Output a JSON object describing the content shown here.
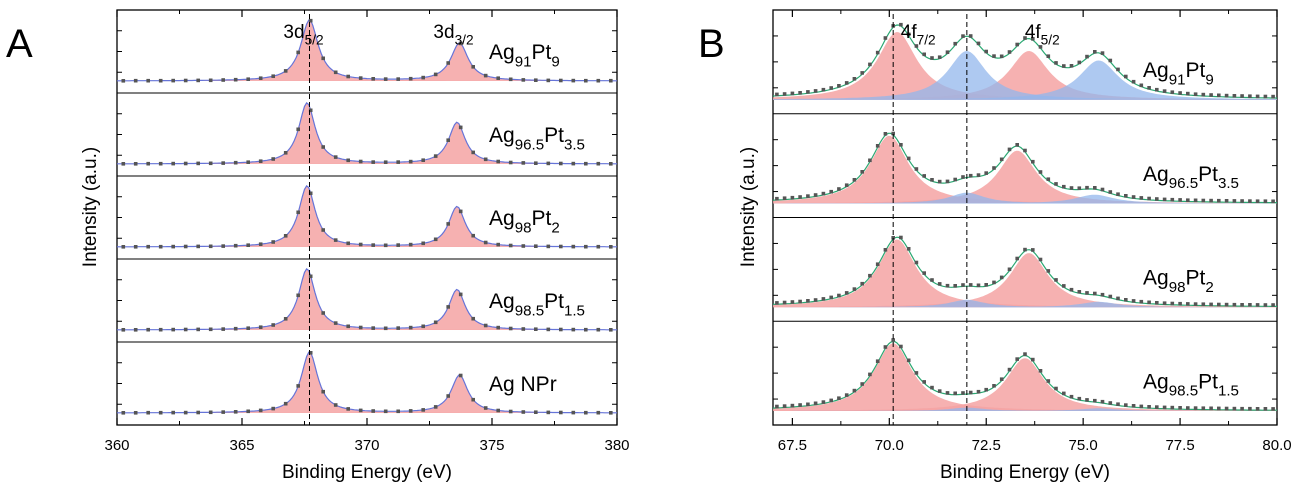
{
  "colors": {
    "peak_fill": "#f4a3a3",
    "peak_fill_opacity": 0.85,
    "secondary_fill": "#93b7ec",
    "secondary_fill_opacity": 0.75,
    "fit_line_A": "#6674d8",
    "fit_line_B": "#2aa872",
    "data_marker": "#555555",
    "axis": "#000000",
    "guide": "#000000"
  },
  "chart_data": [
    {
      "panel_label": "A",
      "type": "line",
      "title": "",
      "xlabel": "Binding Energy (eV)",
      "ylabel": "Intensity (a.u.)",
      "xlim": [
        360,
        380
      ],
      "xticks": [
        "360",
        "365",
        "370",
        "375",
        "380"
      ],
      "x_tick_values": [
        360,
        365,
        370,
        375,
        380
      ],
      "reference_lines": [
        367.7
      ],
      "peak_labels": [
        {
          "main": "3d",
          "sub": "5/2",
          "x": 367.7
        },
        {
          "main": "3d",
          "sub": "3/2",
          "x": 373.7
        }
      ],
      "stacked": true,
      "series": [
        {
          "name_parts": [
            {
              "t": "Ag"
            },
            {
              "t": "91",
              "sub": true
            },
            {
              "t": "Pt"
            },
            {
              "t": "9",
              "sub": true
            }
          ],
          "peaks": [
            {
              "center": 367.7,
              "height": 1.0,
              "width": 0.42
            },
            {
              "center": 373.7,
              "height": 0.62,
              "width": 0.42
            }
          ]
        },
        {
          "name_parts": [
            {
              "t": "Ag"
            },
            {
              "t": "96.5",
              "sub": true
            },
            {
              "t": "Pt"
            },
            {
              "t": "3.5",
              "sub": true
            }
          ],
          "peaks": [
            {
              "center": 367.6,
              "height": 1.0,
              "width": 0.4
            },
            {
              "center": 373.6,
              "height": 0.68,
              "width": 0.4
            }
          ]
        },
        {
          "name_parts": [
            {
              "t": "Ag"
            },
            {
              "t": "98",
              "sub": true
            },
            {
              "t": "Pt"
            },
            {
              "t": "2",
              "sub": true
            }
          ],
          "peaks": [
            {
              "center": 367.6,
              "height": 1.0,
              "width": 0.4
            },
            {
              "center": 373.6,
              "height": 0.66,
              "width": 0.4
            }
          ]
        },
        {
          "name_parts": [
            {
              "t": "Ag"
            },
            {
              "t": "98.5",
              "sub": true
            },
            {
              "t": "Pt"
            },
            {
              "t": "1.5",
              "sub": true
            }
          ],
          "peaks": [
            {
              "center": 367.6,
              "height": 1.0,
              "width": 0.4
            },
            {
              "center": 373.6,
              "height": 0.66,
              "width": 0.4
            }
          ]
        },
        {
          "name_parts": [
            {
              "t": "Ag NPr"
            }
          ],
          "peaks": [
            {
              "center": 367.7,
              "height": 1.0,
              "width": 0.4
            },
            {
              "center": 373.7,
              "height": 0.62,
              "width": 0.4
            }
          ]
        }
      ]
    },
    {
      "panel_label": "B",
      "type": "line",
      "title": "",
      "xlabel": "Binding Energy (eV)",
      "ylabel": "Intensity (a.u.)",
      "xlim": [
        67,
        80
      ],
      "xticks": [
        "67.5",
        "70.0",
        "72.5",
        "75.0",
        "77.5",
        "80.0"
      ],
      "x_tick_values": [
        67.5,
        70.0,
        72.5,
        75.0,
        77.5,
        80.0
      ],
      "reference_lines": [
        70.1,
        72.0
      ],
      "peak_labels": [
        {
          "main": "4f",
          "sub": "7/2",
          "x": 70.9
        },
        {
          "main": "4f",
          "sub": "5/2",
          "x": 74.1
        }
      ],
      "stacked": true,
      "series": [
        {
          "name_parts": [
            {
              "t": "Ag"
            },
            {
              "t": "91",
              "sub": true
            },
            {
              "t": "Pt"
            },
            {
              "t": "9",
              "sub": true
            }
          ],
          "red_peaks": [
            {
              "center": 70.2,
              "height": 1.0,
              "width": 0.62
            },
            {
              "center": 73.6,
              "height": 0.72,
              "width": 0.62
            }
          ],
          "blue_peaks": [
            {
              "center": 72.0,
              "height": 0.72,
              "width": 0.6
            },
            {
              "center": 75.4,
              "height": 0.58,
              "width": 0.62
            }
          ]
        },
        {
          "name_parts": [
            {
              "t": "Ag"
            },
            {
              "t": "96.5",
              "sub": true
            },
            {
              "t": "Pt"
            },
            {
              "t": "3.5",
              "sub": true
            }
          ],
          "red_peaks": [
            {
              "center": 70.0,
              "height": 1.0,
              "width": 0.6
            },
            {
              "center": 73.3,
              "height": 0.78,
              "width": 0.6
            }
          ],
          "blue_peaks": [
            {
              "center": 72.0,
              "height": 0.16,
              "width": 0.55
            },
            {
              "center": 75.3,
              "height": 0.13,
              "width": 0.6
            }
          ]
        },
        {
          "name_parts": [
            {
              "t": "Ag"
            },
            {
              "t": "98",
              "sub": true
            },
            {
              "t": "Pt"
            },
            {
              "t": "2",
              "sub": true
            }
          ],
          "red_peaks": [
            {
              "center": 70.2,
              "height": 1.0,
              "width": 0.6
            },
            {
              "center": 73.6,
              "height": 0.8,
              "width": 0.6
            }
          ],
          "blue_peaks": [
            {
              "center": 72.0,
              "height": 0.11,
              "width": 0.55
            },
            {
              "center": 75.4,
              "height": 0.08,
              "width": 0.6
            }
          ]
        },
        {
          "name_parts": [
            {
              "t": "Ag"
            },
            {
              "t": "98.5",
              "sub": true
            },
            {
              "t": "Pt"
            },
            {
              "t": "1.5",
              "sub": true
            }
          ],
          "red_peaks": [
            {
              "center": 70.1,
              "height": 1.0,
              "width": 0.6
            },
            {
              "center": 73.5,
              "height": 0.78,
              "width": 0.6
            }
          ],
          "blue_peaks": [
            {
              "center": 72.0,
              "height": 0.05,
              "width": 0.55
            },
            {
              "center": 75.4,
              "height": 0.04,
              "width": 0.6
            }
          ]
        }
      ]
    }
  ]
}
